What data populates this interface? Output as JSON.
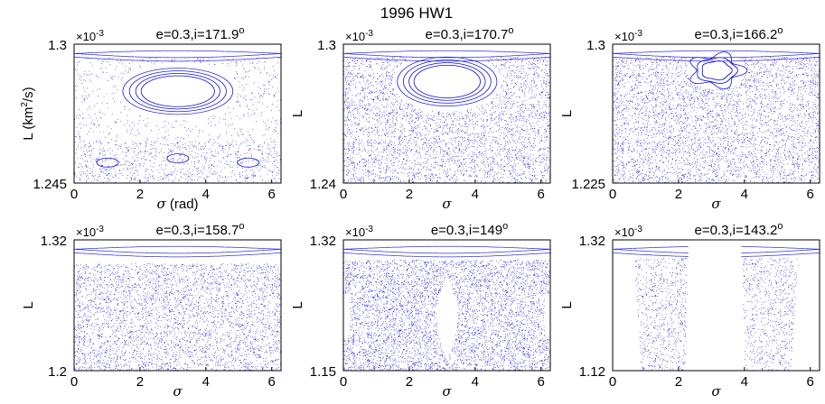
{
  "figure_title": "1996 HW1",
  "colors": {
    "points": "#1010e0",
    "axes": "#000000",
    "background": "#ffffff"
  },
  "chart_data": [
    {
      "type": "scatter",
      "title": "e=0.3,i=171.9",
      "title_superscript": "o",
      "exponent_base": "×10",
      "exponent_power": "-3",
      "xlabel_greek": "σ",
      "xlabel_suffix": " (rad)",
      "ylabel_main": "L (km",
      "ylabel_sup": "2",
      "ylabel_end": "/s)",
      "xlim": [
        0,
        6.283
      ],
      "ylim": [
        1.245,
        1.3
      ],
      "xticks": [
        0,
        2,
        4,
        6
      ],
      "ytick_labels": [
        "1.245",
        "1.3"
      ],
      "pattern": "island",
      "island_center": [
        3.14,
        1.2815
      ],
      "island_radius": [
        1.05,
        0.0065
      ]
    },
    {
      "type": "scatter",
      "title": "e=0.3,i=170.7",
      "title_superscript": "o",
      "exponent_base": "×10",
      "exponent_power": "-3",
      "xlabel_greek": "σ",
      "ylabel_main": "L",
      "xlim": [
        0,
        6.283
      ],
      "ylim": [
        1.24,
        1.3
      ],
      "xticks": [
        0,
        2,
        4,
        6
      ],
      "ytick_labels": [
        "1.24",
        "1.3"
      ],
      "pattern": "island",
      "island_center": [
        3.14,
        1.284
      ],
      "island_radius": [
        0.95,
        0.0075
      ]
    },
    {
      "type": "scatter",
      "title": "e=0.3,i=166.2",
      "title_superscript": "o",
      "exponent_base": "×10",
      "exponent_power": "-3",
      "xlabel_greek": "σ",
      "ylabel_main": "L",
      "xlim": [
        0,
        6.283
      ],
      "ylim": [
        1.225,
        1.3
      ],
      "xticks": [
        0,
        2,
        4,
        6
      ],
      "ytick_labels": [
        "1.225",
        "1.3"
      ],
      "pattern": "small-island",
      "island_center": [
        3.14,
        1.286
      ],
      "island_radius": [
        0.45,
        0.005
      ]
    },
    {
      "type": "scatter",
      "title": "e=0.3,i=158.7",
      "title_superscript": "o",
      "exponent_base": "×10",
      "exponent_power": "-3",
      "xlabel_greek": "σ",
      "ylabel_main": "L",
      "xlim": [
        0,
        6.283
      ],
      "ylim": [
        1.2,
        1.32
      ],
      "xticks": [
        0,
        2,
        4,
        6
      ],
      "ytick_labels": [
        "1.2",
        "1.32"
      ],
      "pattern": "chaos"
    },
    {
      "type": "scatter",
      "title": "e=0.3,i=149",
      "title_superscript": "o",
      "exponent_base": "×10",
      "exponent_power": "-3",
      "xlabel_greek": "σ",
      "ylabel_main": "L",
      "xlim": [
        0,
        6.283
      ],
      "ylim": [
        1.15,
        1.32
      ],
      "xticks": [
        0,
        2,
        4,
        6
      ],
      "ytick_labels": [
        "1.15",
        "1.32"
      ],
      "pattern": "lens",
      "gap_center": 3.14,
      "gap_halfwidth": 0.32
    },
    {
      "type": "scatter",
      "title": "e=0.3,i=143.2",
      "title_superscript": "o",
      "exponent_base": "×10",
      "exponent_power": "-3",
      "xlabel_greek": "σ",
      "ylabel_main": "L",
      "xlim": [
        0,
        6.283
      ],
      "ylim": [
        1.12,
        1.32
      ],
      "xticks": [
        0,
        2,
        4,
        6
      ],
      "ytick_labels": [
        "1.12",
        "1.32"
      ],
      "pattern": "split",
      "gap_range": [
        2.3,
        3.9
      ]
    }
  ]
}
